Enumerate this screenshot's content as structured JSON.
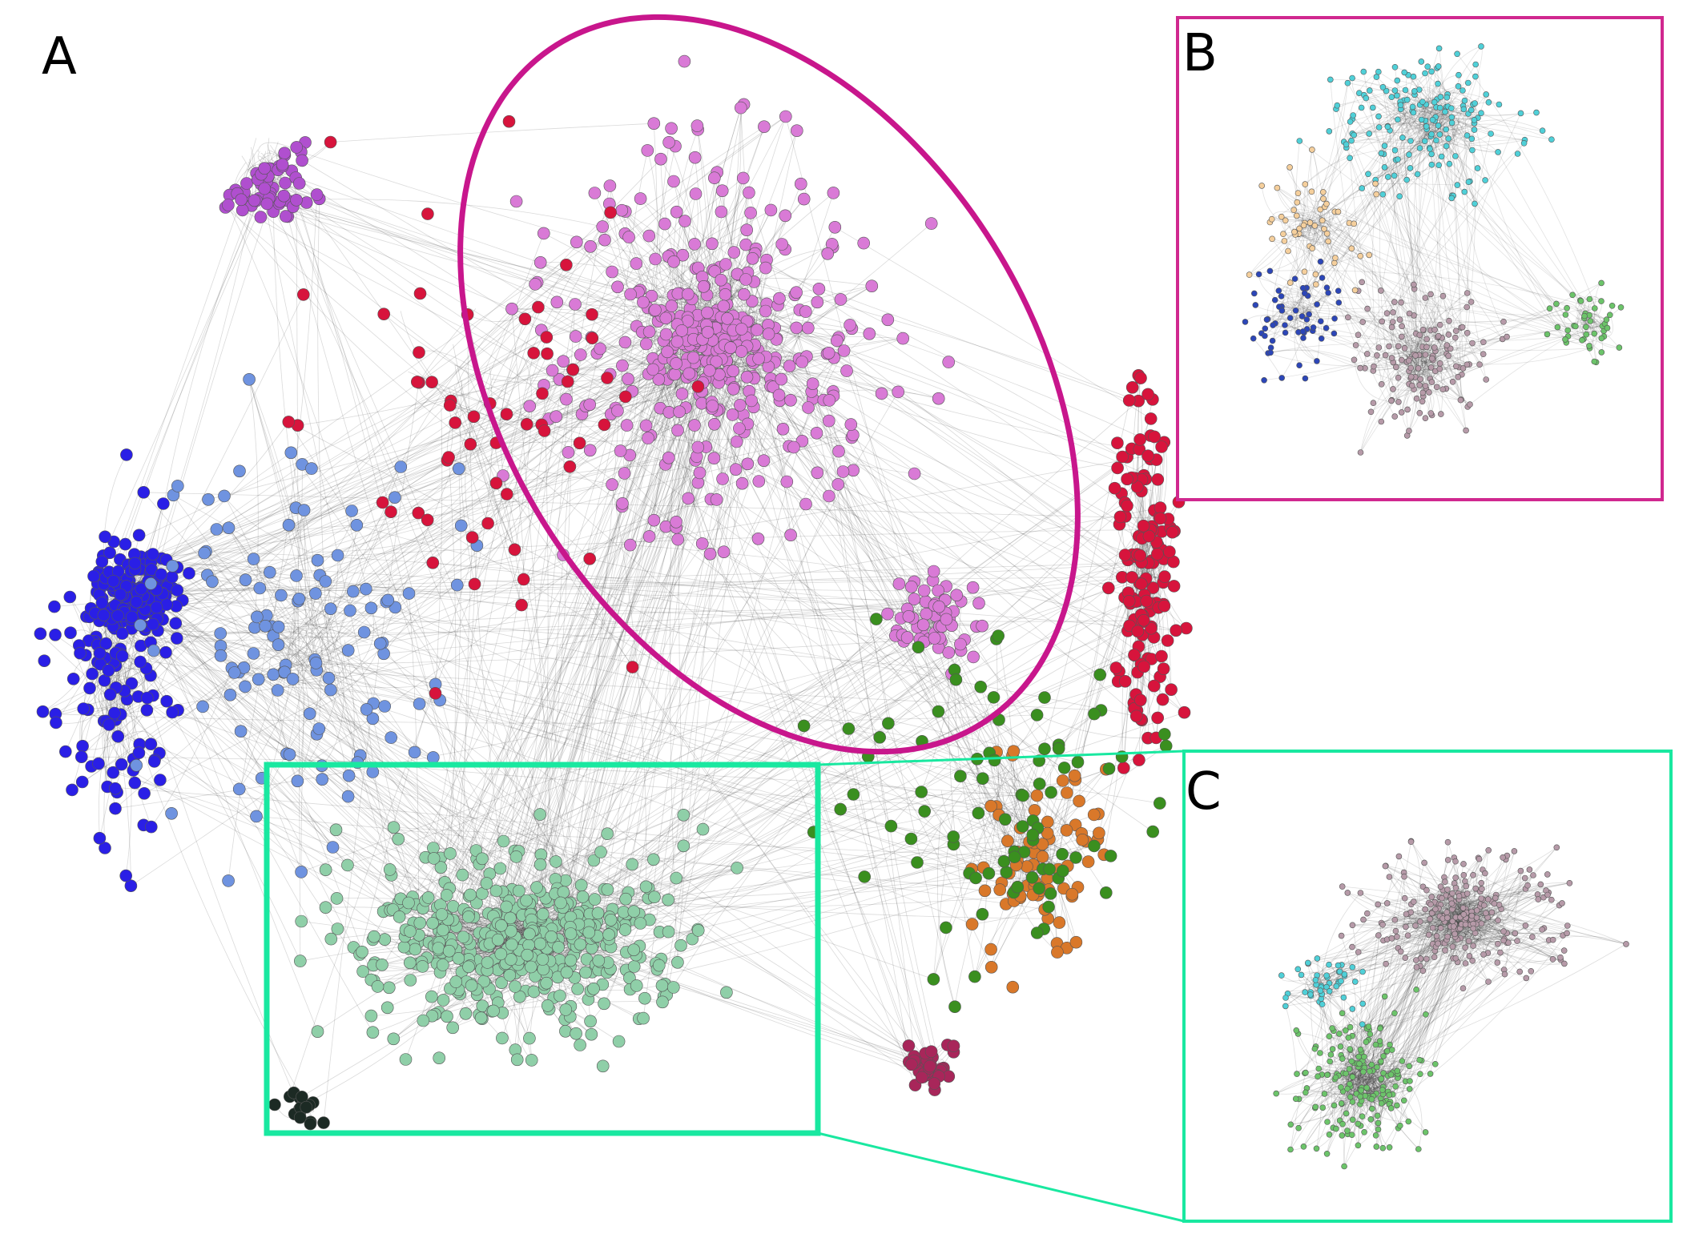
{
  "labels": {
    "a": "A",
    "b": "B",
    "c": "C"
  },
  "colors": {
    "highlight_ellipse": "#c8168c",
    "inset_b_frame": "#d0288f",
    "inset_c_frame": "#19e8a0",
    "zoom_box": "#19e8a0",
    "edge": "#333333",
    "community_magenta": "#d97ad6",
    "community_blue": "#2a1fe6",
    "community_lightblue": "#6f93e0",
    "community_mint": "#8fcfa8",
    "community_red": "#d7143c",
    "community_purple": "#b04fcf",
    "community_green": "#3a8f1f",
    "community_orange": "#d9782a",
    "community_maroon": "#a8265a",
    "community_dark": "#1c2a24",
    "inset_cyan": "#4fd0d8",
    "inset_mauve": "#b69aa8",
    "inset_green": "#6cc46a",
    "inset_navy": "#2c46b8",
    "inset_peach": "#f5cf9c"
  }
}
